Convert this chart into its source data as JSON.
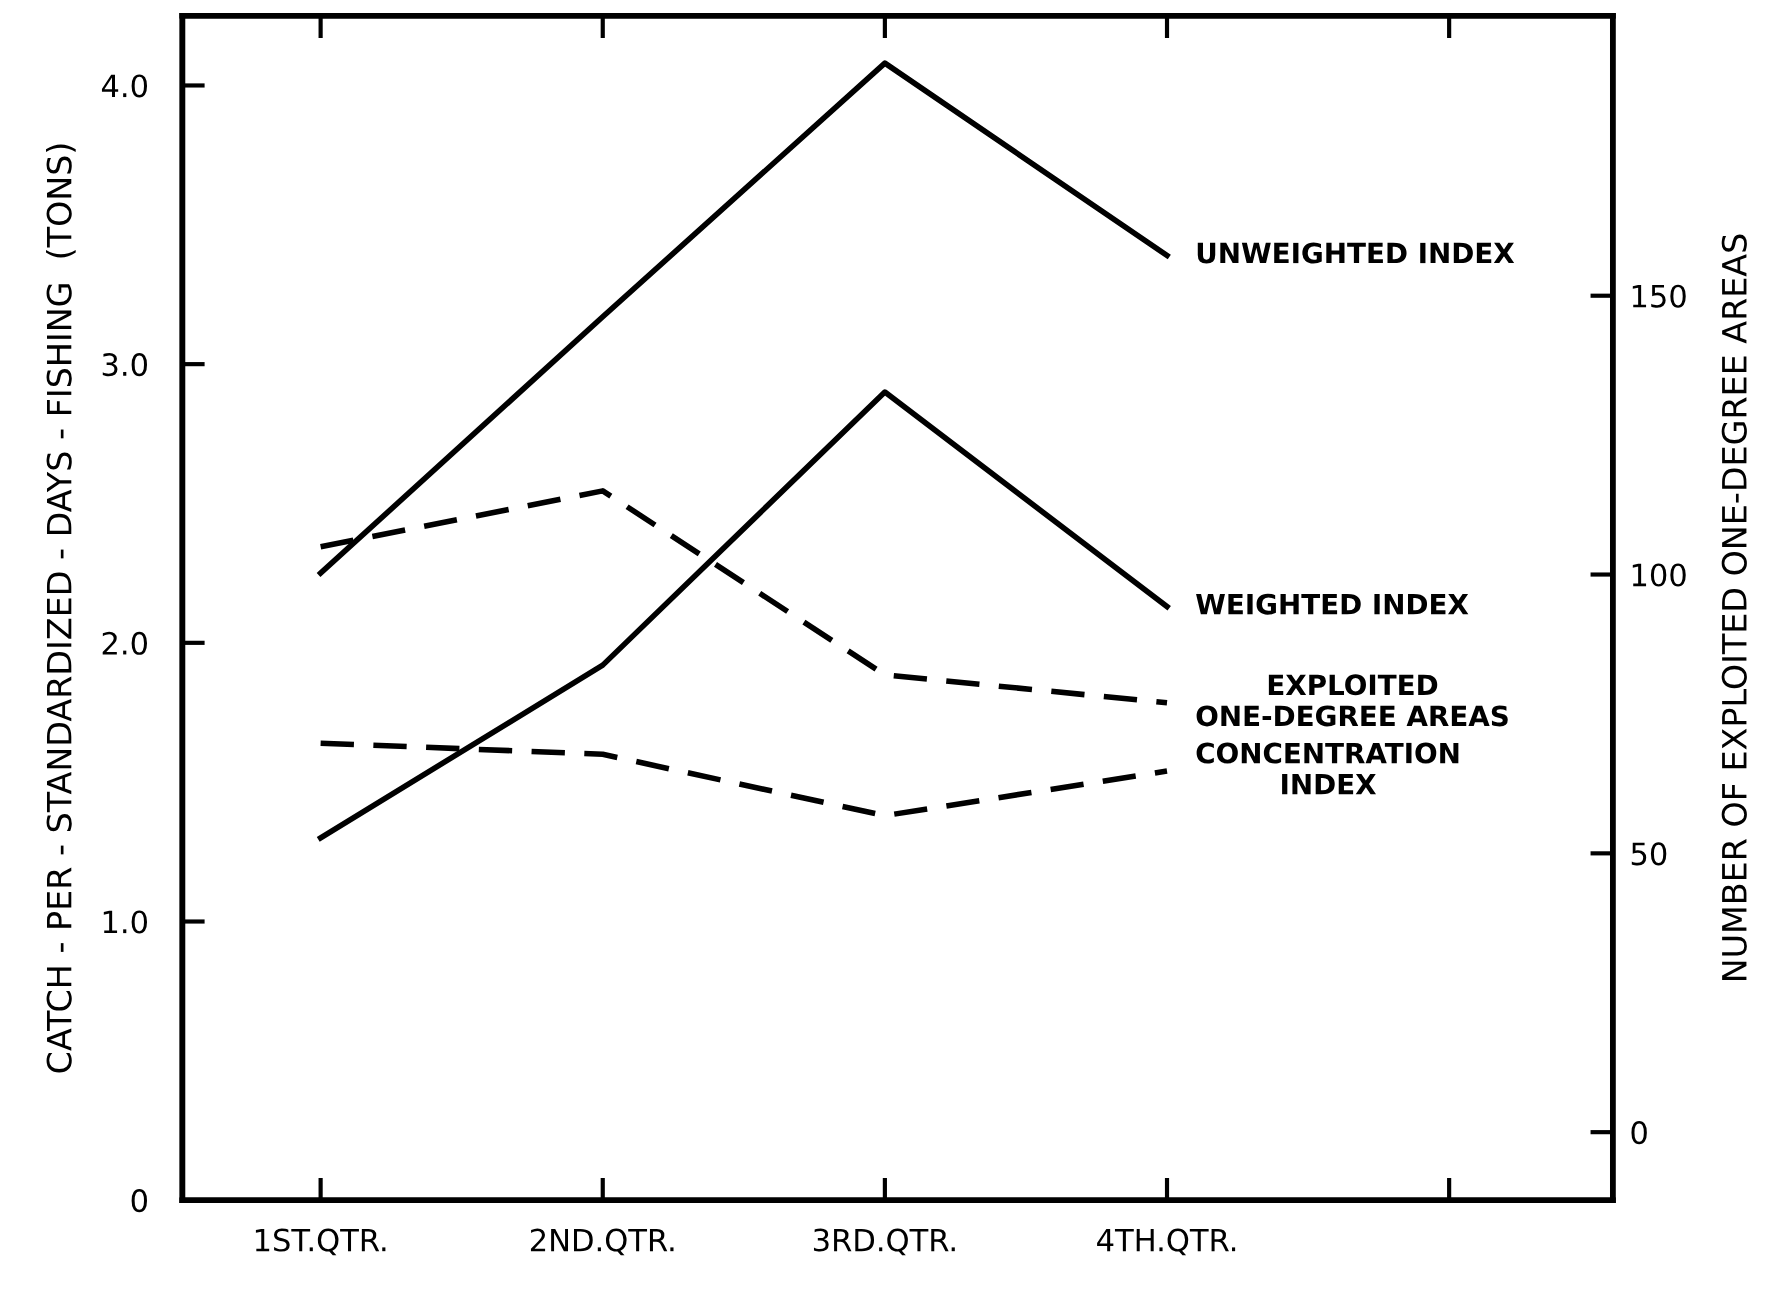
{
  "chart_data": {
    "type": "line",
    "ylabel": "CATCH - PER - STANDARDIZED - DAYS - FISHING  (TONS)",
    "y2label": "NUMBER OF EXPLOITED ONE-DEGREE AREAS",
    "categories": [
      "1ST.QTR.",
      "2ND.QTR.",
      "3RD.QTR.",
      "4TH.QTR.",
      null
    ],
    "series": [
      {
        "name": "UNWEIGHTED INDEX",
        "color": "#000000",
        "line_style": "solid",
        "values": [
          2.25,
          3.17,
          4.08,
          3.39,
          null
        ]
      },
      {
        "name": "WEIGHTED INDEX",
        "color": "#000000",
        "line_style": "solid",
        "values": [
          1.3,
          1.92,
          2.9,
          2.13,
          null
        ]
      },
      {
        "name": "EXPLOITED\nONE-DEGREE AREAS",
        "color": "#000000",
        "line_style": "dashed",
        "axis": "y2",
        "values": [
          105,
          115,
          82,
          77,
          null
        ]
      },
      {
        "name": "CONCENTRATION\nINDEX",
        "color": "#000000",
        "line_style": "dashed",
        "values": [
          1.64,
          1.6,
          1.38,
          1.54,
          null
        ]
      }
    ],
    "ylim": [
      0,
      4.25
    ],
    "yticks": [
      0,
      {
        "value": 1,
        "label": "1.0"
      },
      {
        "value": 2,
        "label": "2.0"
      },
      {
        "value": 3,
        "label": "3.0"
      },
      {
        "value": 4,
        "label": "4.0"
      }
    ],
    "y2lim": [
      -12.2,
      200.2
    ],
    "y2ticks": [
      0,
      50,
      100,
      150
    ],
    "grid": false,
    "legend": false,
    "marker": "none"
  }
}
